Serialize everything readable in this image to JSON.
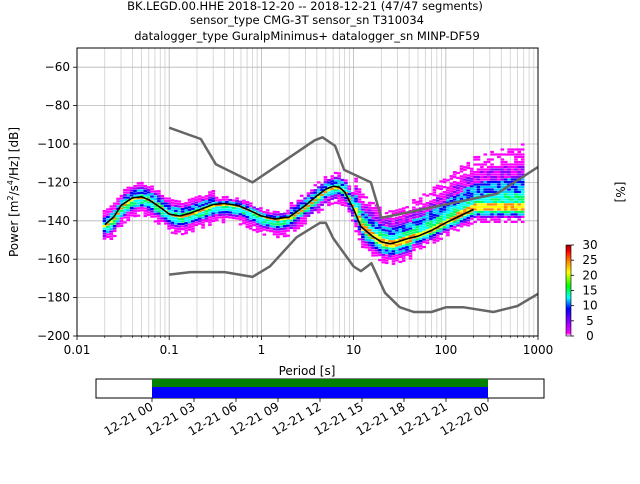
{
  "chart_data": [
    {
      "type": "heatmap",
      "title": "BK.LEGD.00.HHE   2018-12-20 -- 2018-12-21  (47/47 segments)",
      "subtitle_1": "sensor_type CMG-3T sensor_sn T310034",
      "subtitle_2": "datalogger_type GuralpMinimus+ datalogger_sn MINP-DF59",
      "xlabel": "Period [s]",
      "ylabel": "Power [m²/s⁴/Hz] [dB]",
      "ylabel_main": "Power [m",
      "ylabel_sup1": "2",
      "ylabel_mid": "/s",
      "ylabel_sup2": "4",
      "ylabel_tail": "/Hz] [dB]",
      "xscale": "log",
      "xlim": [
        0.01,
        1000
      ],
      "ylim": [
        -200,
        -50
      ],
      "xticks": [
        0.01,
        0.1,
        1,
        10,
        100,
        1000
      ],
      "xtick_labels": [
        "0.01",
        "0.1",
        "1",
        "10",
        "100",
        "1000"
      ],
      "yticks": [
        -200,
        -180,
        -160,
        -140,
        -120,
        -100,
        -80,
        -60
      ],
      "ytick_labels": [
        "−200",
        "−180",
        "−160",
        "−140",
        "−120",
        "−100",
        "−80",
        "−60"
      ],
      "grid": true,
      "noise_model_color": "#666666",
      "noise_model_high": {
        "period": [
          0.1,
          0.22,
          0.32,
          0.8,
          3.8,
          4.6,
          6.3,
          7.9,
          15.4,
          20,
          354.8,
          1000
        ],
        "db": [
          -91.5,
          -97.4,
          -110.5,
          -120.0,
          -98.0,
          -96.5,
          -101.0,
          -113.5,
          -120.0,
          -138.5,
          -126.0,
          -112.0
        ]
      },
      "noise_model_low": {
        "period": [
          0.1,
          0.17,
          0.4,
          0.8,
          1.24,
          2.4,
          4.3,
          5.0,
          6.0,
          10.0,
          12.0,
          15.6,
          21.9,
          31.6,
          45.0,
          70.0,
          101.0,
          154.0,
          328.0,
          600.0,
          1000.0
        ],
        "db": [
          -168.0,
          -166.7,
          -166.7,
          -169.2,
          -163.7,
          -148.6,
          -141.1,
          -141.1,
          -149.0,
          -163.8,
          -166.2,
          -162.1,
          -177.5,
          -185.0,
          -187.5,
          -187.5,
          -185.0,
          -185.0,
          -187.5,
          -184.4,
          -178.0
        ]
      },
      "median_curve": {
        "color": "#000000",
        "period": [
          0.02,
          0.025,
          0.03,
          0.04,
          0.05,
          0.06,
          0.08,
          0.1,
          0.13,
          0.17,
          0.22,
          0.3,
          0.4,
          0.55,
          0.7,
          1.0,
          1.4,
          2.0,
          3.0,
          4.0,
          5.0,
          6.0,
          7.0,
          8.0,
          10.0,
          12.0,
          16.0,
          20.0,
          25.0,
          30.0,
          40.0,
          50.0,
          70.0,
          100.0,
          150.0,
          200.0
        ],
        "db": [
          -142,
          -138,
          -132,
          -128,
          -127.5,
          -129,
          -133,
          -136.5,
          -137.5,
          -136,
          -134,
          -131.5,
          -131,
          -132,
          -134,
          -137.5,
          -139,
          -138,
          -132,
          -127,
          -123.5,
          -122,
          -122.5,
          -125,
          -134,
          -143,
          -148,
          -151,
          -152,
          -151,
          -149,
          -148,
          -145,
          -141,
          -137,
          -134
        ]
      },
      "colorbar": {
        "label": "[%]",
        "min": 0,
        "max": 30,
        "ticks": [
          0,
          5,
          10,
          15,
          20,
          25,
          30
        ],
        "tick_labels": [
          "0",
          "5",
          "10",
          "15",
          "20",
          "25",
          "30"
        ],
        "colors": [
          "#ffffff",
          "#ff00ff",
          "#8800ff",
          "#0000ff",
          "#00ffff",
          "#00ff00",
          "#ffff00",
          "#ff8800",
          "#ff0000",
          "#990000"
        ]
      }
    },
    {
      "type": "timeline",
      "xticks": [
        "12-21 00",
        "12-21 03",
        "12-21 06",
        "12-21 09",
        "12-21 12",
        "12-21 15",
        "12-21 18",
        "12-21 21",
        "12-22 00"
      ],
      "range_hours": [
        -4,
        28
      ],
      "data_available_hours": [
        0,
        24
      ],
      "psd_used_hours": [
        0,
        24
      ],
      "available_color": "#008000",
      "used_color": "#0000ff"
    }
  ]
}
